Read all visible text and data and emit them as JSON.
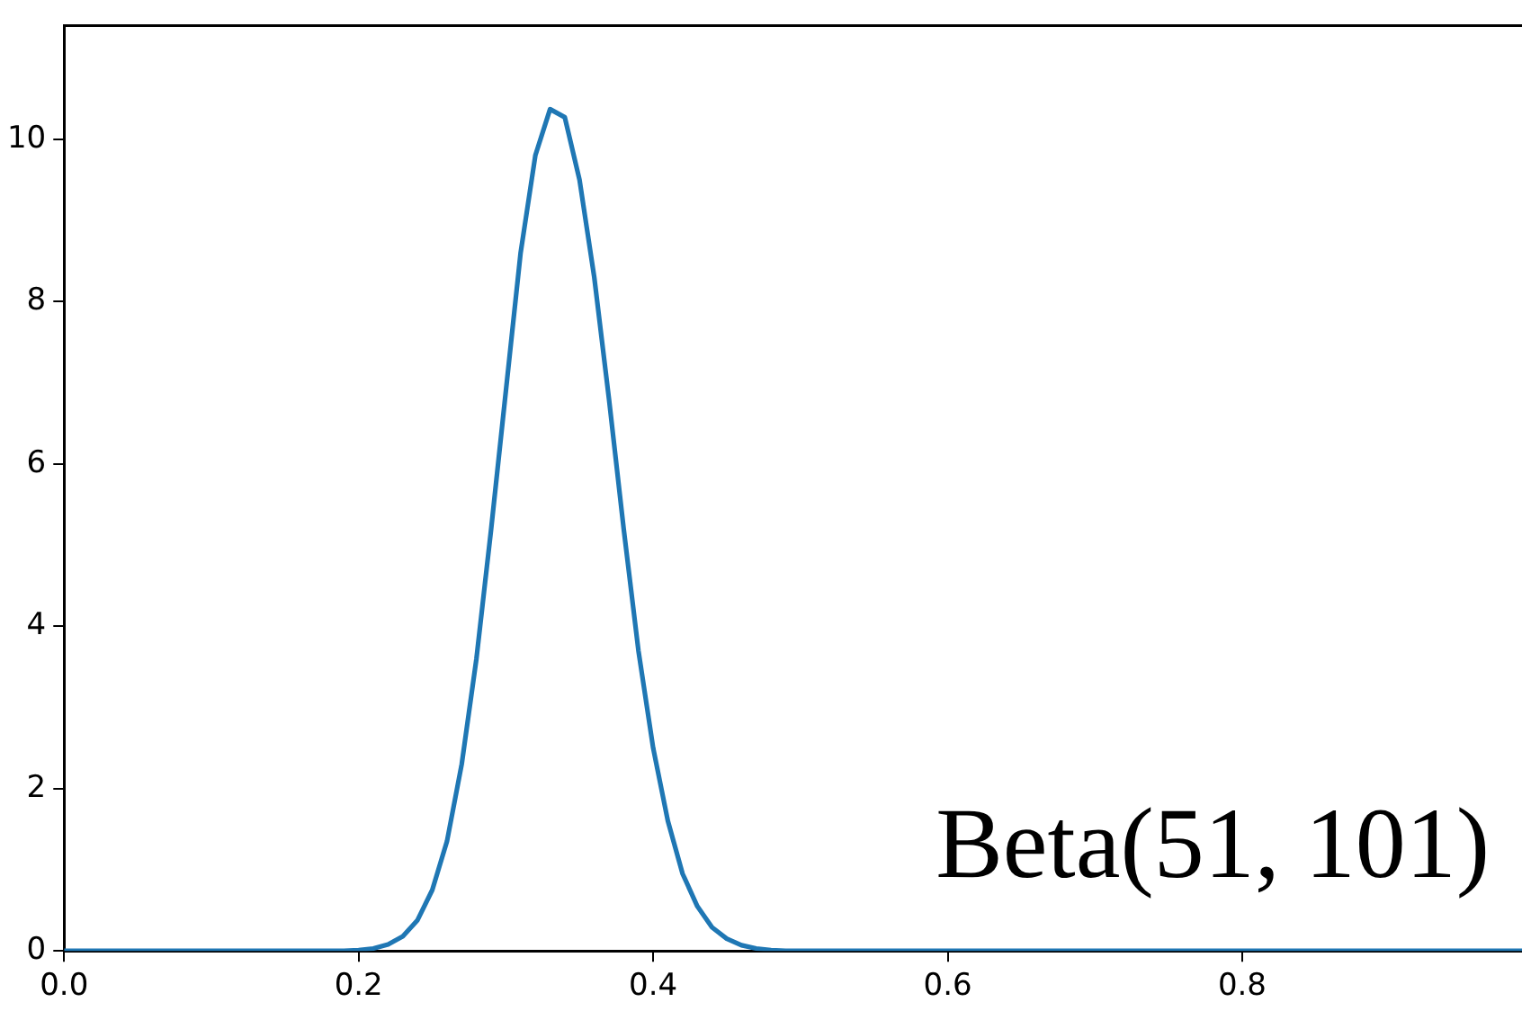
{
  "chart_data": {
    "type": "line",
    "annotations": [
      "Beta(51, 101)"
    ],
    "x": [
      0,
      0.19,
      0.2,
      0.21,
      0.22,
      0.23,
      0.24,
      0.25,
      0.26,
      0.27,
      0.28,
      0.29,
      0.3,
      0.31,
      0.32,
      0.33,
      0.34,
      0.35,
      0.36,
      0.37,
      0.38,
      0.39,
      0.4,
      0.41,
      0.42,
      0.43,
      0.44,
      0.45,
      0.46,
      0.47,
      0.48,
      0.49,
      0.99
    ],
    "series": [
      {
        "color": "#1f77b4",
        "values": [
          0,
          0,
          0.01,
          0.03,
          0.08,
          0.18,
          0.38,
          0.75,
          1.35,
          2.3,
          3.6,
          5.2,
          6.9,
          8.6,
          9.8,
          10.37,
          10.27,
          9.5,
          8.3,
          6.8,
          5.2,
          3.7,
          2.5,
          1.6,
          0.95,
          0.55,
          0.29,
          0.15,
          0.07,
          0.03,
          0.01,
          0,
          0
        ]
      }
    ],
    "xlim": [
      0,
      0.99
    ],
    "xticks": [
      {
        "value": 0,
        "label": "0.0"
      },
      {
        "value": 0.2,
        "label": "0.2"
      },
      {
        "value": 0.4,
        "label": "0.4"
      },
      {
        "value": 0.6,
        "label": "0.6"
      },
      {
        "value": 0.8,
        "label": "0.8"
      }
    ],
    "ylim": [
      0,
      11.4
    ],
    "yticks": [
      0,
      2,
      4,
      6,
      8,
      10
    ],
    "grid": false,
    "legend": false,
    "marker": "none",
    "line_style": "solid"
  }
}
